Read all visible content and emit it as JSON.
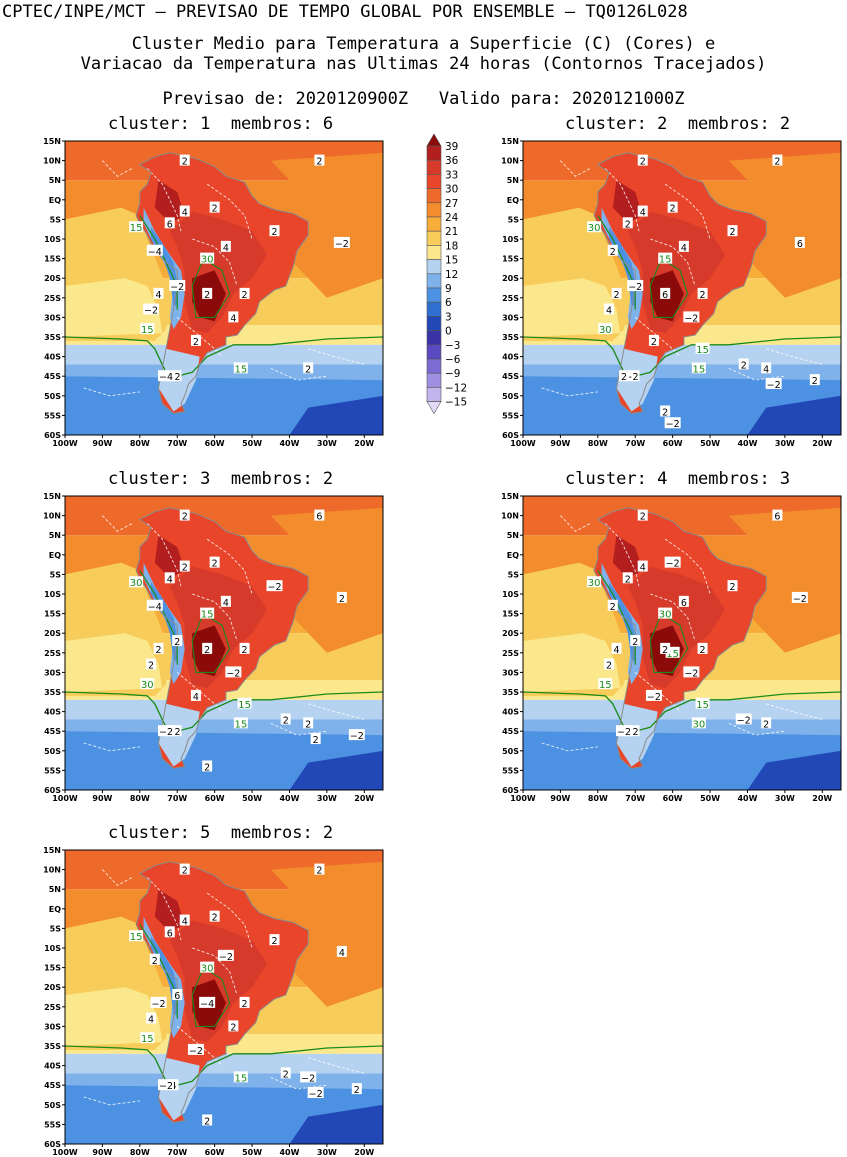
{
  "header": {
    "line1": "CPTEC/INPE/MCT — PREVISAO DE TEMPO GLOBAL POR ENSEMBLE — TQ0126L028",
    "line2": "Cluster Medio para Temperatura a Superficie (C) (Cores) e",
    "line3": "Variacao da Temperatura nas Ultimas 24 horas (Contornos Tracejados)",
    "line4": "Previsao de: 2020120900Z   Valido para: 2020121000Z"
  },
  "panels": [
    {
      "title": "cluster: 1  membros: 6"
    },
    {
      "title": "cluster: 2  membros: 2"
    },
    {
      "title": "cluster: 3  membros: 2"
    },
    {
      "title": "cluster: 4  membros: 3"
    },
    {
      "title": "cluster: 5  membros: 2"
    }
  ],
  "axes": {
    "lat_labels": [
      "15N",
      "10N",
      "5N",
      "EQ",
      "5S",
      "10S",
      "15S",
      "20S",
      "25S",
      "30S",
      "35S",
      "40S",
      "45S",
      "50S",
      "55S",
      "60S"
    ],
    "lon_labels": [
      "100W",
      "90W",
      "80W",
      "70W",
      "60W",
      "50W",
      "40W",
      "30W",
      "20W"
    ]
  },
  "colorbar": {
    "labels": [
      "39",
      "36",
      "33",
      "30",
      "27",
      "24",
      "21",
      "18",
      "15",
      "12",
      "9",
      "6",
      "3",
      "0",
      "−3",
      "−6",
      "−9",
      "−12",
      "−15"
    ],
    "colors": [
      "#8b0a0a",
      "#b31e1e",
      "#d53a2a",
      "#e8452a",
      "#ee6a2a",
      "#f28c2c",
      "#f6ad3a",
      "#f8cc5a",
      "#fbe88c",
      "#b5d3f0",
      "#7fb2ea",
      "#4d92e2",
      "#2e6fd0",
      "#2248b8",
      "#3a33a6",
      "#5a49c0",
      "#7b6bd2",
      "#9e8fe0",
      "#c2b5ee",
      "#e2dbf8"
    ]
  },
  "chart_data": [
    {
      "type": "heatmap",
      "title": "cluster: 1  membros: 6",
      "lat_range": [
        "60S",
        "15N"
      ],
      "lon_range": [
        "100W",
        "15W"
      ],
      "contour_labels_temperature": [
        "15",
        "30",
        "15",
        "15"
      ],
      "contour_labels_variation": [
        "2",
        "2",
        "4",
        "6",
        "2",
        "4",
        "2",
        "−2",
        "−4",
        "−2",
        "4",
        "2",
        "2",
        "4",
        "−2",
        "2",
        "−2",
        "−4",
        "2"
      ]
    },
    {
      "type": "heatmap",
      "title": "cluster: 2  membros: 2",
      "lat_range": [
        "60S",
        "15N"
      ],
      "lon_range": [
        "100W",
        "15W"
      ],
      "contour_labels_temperature": [
        "30",
        "15",
        "30",
        "15",
        "15"
      ],
      "contour_labels_variation": [
        "2",
        "2",
        "4",
        "2",
        "2",
        "4",
        "2",
        "6",
        "2",
        "−2",
        "2",
        "6",
        "2",
        "−2",
        "4",
        "2",
        "−2",
        "2",
        "4",
        "2",
        "2",
        "−2",
        "2",
        "−2"
      ]
    },
    {
      "type": "heatmap",
      "title": "cluster: 3  membros: 2",
      "lat_range": [
        "60S",
        "15N"
      ],
      "lon_range": [
        "100W",
        "15W"
      ],
      "contour_labels_temperature": [
        "30",
        "15",
        "30",
        "15",
        "15"
      ],
      "contour_labels_variation": [
        "2",
        "6",
        "2",
        "4",
        "2",
        "4",
        "−2",
        "2",
        "−4",
        "2",
        "2",
        "2",
        "2",
        "−2",
        "2",
        "4",
        "−2",
        "−2",
        "2",
        "2",
        "−2",
        "2",
        "2"
      ]
    },
    {
      "type": "heatmap",
      "title": "cluster: 4  membros: 3",
      "lat_range": [
        "60S",
        "15N"
      ],
      "lon_range": [
        "100W",
        "15W"
      ],
      "contour_labels_temperature": [
        "30",
        "30",
        "15",
        "30",
        "15",
        "15"
      ],
      "contour_labels_variation": [
        "2",
        "6",
        "4",
        "2",
        "−2",
        "6",
        "2",
        "−2",
        "2",
        "2",
        "4",
        "2",
        "2",
        "−2",
        "2",
        "−2",
        "−2",
        "−2",
        "2",
        "−2"
      ]
    },
    {
      "type": "heatmap",
      "title": "cluster: 5  membros: 2",
      "lat_range": [
        "60S",
        "15N"
      ],
      "lon_range": [
        "100W",
        "15W"
      ],
      "contour_labels_temperature": [
        "15",
        "30",
        "15",
        "15"
      ],
      "contour_labels_variation": [
        "2",
        "2",
        "4",
        "6",
        "2",
        "−2",
        "2",
        "4",
        "2",
        "6",
        "−2",
        "−4",
        "2",
        "2",
        "4",
        "−2",
        "4",
        "−2",
        "−2",
        "2",
        "2",
        "−2",
        "2"
      ]
    }
  ]
}
